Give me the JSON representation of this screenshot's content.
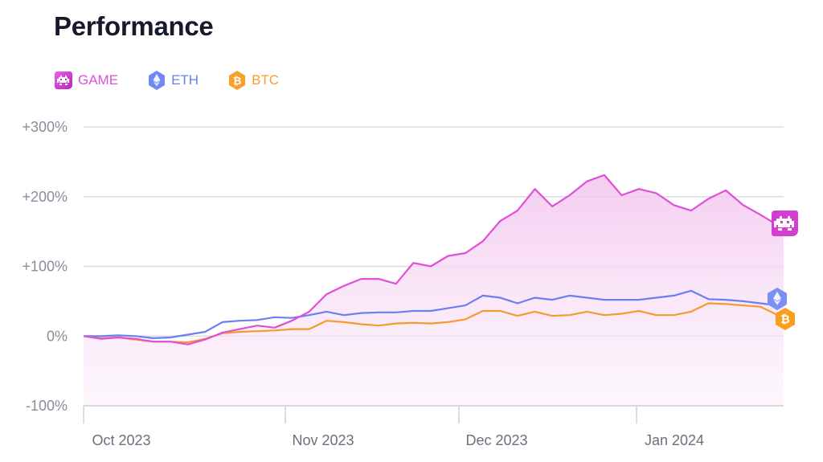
{
  "title": "Performance",
  "legend": [
    {
      "label": "GAME",
      "color": "#e04fd8",
      "icon": "space-invader-icon"
    },
    {
      "label": "ETH",
      "color": "#6a7ff0",
      "icon": "ethereum-icon"
    },
    {
      "label": "BTC",
      "color": "#f79a2e",
      "icon": "bitcoin-icon"
    }
  ],
  "chart_data": {
    "type": "line",
    "title": "Performance",
    "xlabel": "",
    "ylabel": "",
    "ylim": [
      -100,
      300
    ],
    "yticks": [
      {
        "value": 300,
        "label": "+300%"
      },
      {
        "value": 200,
        "label": "+200%"
      },
      {
        "value": 100,
        "label": "+100%"
      },
      {
        "value": 0,
        "label": "0%"
      },
      {
        "value": -100,
        "label": "-100%"
      }
    ],
    "xticks": [
      "Oct 2023",
      "Nov 2023",
      "Dec 2023",
      "Jan 2024"
    ],
    "grid": true,
    "legend_position": "top-left",
    "x": [
      "2023-09-27",
      "2023-09-30",
      "2023-10-03",
      "2023-10-06",
      "2023-10-09",
      "2023-10-12",
      "2023-10-15",
      "2023-10-18",
      "2023-10-21",
      "2023-10-24",
      "2023-10-27",
      "2023-10-30",
      "2023-11-02",
      "2023-11-05",
      "2023-11-08",
      "2023-11-11",
      "2023-11-14",
      "2023-11-17",
      "2023-11-20",
      "2023-11-23",
      "2023-11-26",
      "2023-11-29",
      "2023-12-02",
      "2023-12-05",
      "2023-12-08",
      "2023-12-11",
      "2023-12-14",
      "2023-12-17",
      "2023-12-20",
      "2023-12-23",
      "2023-12-26",
      "2023-12-29",
      "2024-01-01",
      "2024-01-04",
      "2024-01-07",
      "2024-01-10",
      "2024-01-13",
      "2024-01-16",
      "2024-01-19",
      "2024-01-22",
      "2024-01-25",
      "2024-01-26"
    ],
    "series": [
      {
        "name": "GAME",
        "color": "#e04fd8",
        "filled": true,
        "values": [
          0,
          -4,
          -2,
          -4,
          -8,
          -8,
          -12,
          -5,
          5,
          10,
          15,
          12,
          22,
          35,
          60,
          72,
          82,
          82,
          75,
          105,
          100,
          115,
          119,
          136,
          165,
          180,
          211,
          186,
          202,
          222,
          231,
          202,
          211,
          205,
          188,
          180,
          197,
          209,
          188,
          174,
          159,
          159
        ]
      },
      {
        "name": "ETH",
        "color": "#6a7ff0",
        "values": [
          0,
          0,
          1,
          0,
          -3,
          -2,
          2,
          6,
          20,
          22,
          23,
          27,
          26,
          30,
          35,
          30,
          33,
          34,
          34,
          36,
          36,
          40,
          44,
          58,
          55,
          47,
          55,
          52,
          58,
          55,
          52,
          52,
          52,
          55,
          58,
          65,
          53,
          52,
          50,
          47,
          44,
          44
        ]
      },
      {
        "name": "BTC",
        "color": "#f79a2e",
        "values": [
          0,
          -3,
          -2,
          -5,
          -8,
          -8,
          -9,
          -4,
          4,
          6,
          7,
          8,
          10,
          10,
          22,
          20,
          17,
          15,
          18,
          19,
          18,
          20,
          24,
          36,
          36,
          29,
          35,
          29,
          30,
          35,
          30,
          32,
          36,
          30,
          30,
          35,
          47,
          46,
          44,
          42,
          30,
          28
        ]
      }
    ]
  }
}
